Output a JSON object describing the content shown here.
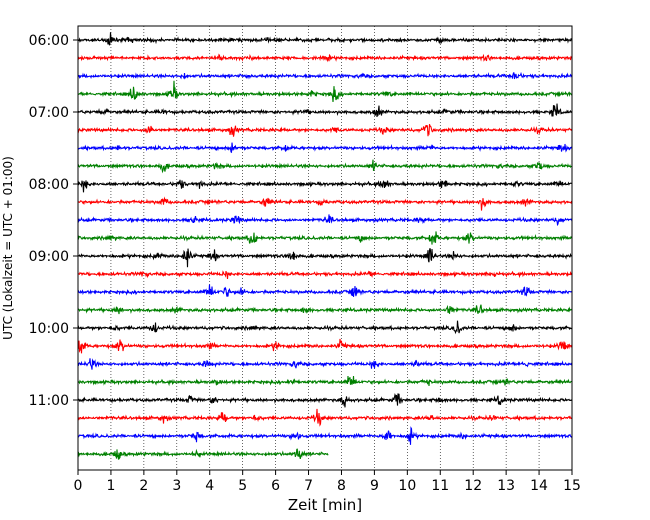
{
  "chart_data": {
    "type": "line",
    "xlabel": "Zeit  [min]",
    "ylabel": "UTC (Lokalzeit = UTC + 01:00)",
    "xlim": [
      0,
      15
    ],
    "x_ticks": [
      "0",
      "1",
      "2",
      "3",
      "4",
      "5",
      "6",
      "7",
      "8",
      "9",
      "10",
      "11",
      "12",
      "13",
      "14",
      "15"
    ],
    "y_ticks": [
      "06:00",
      "07:00",
      "08:00",
      "09:00",
      "10:00",
      "11:00"
    ],
    "grid_x": true,
    "trace_minutes": 15,
    "start_time": "06:00",
    "colors": [
      "#000000",
      "#ff0000",
      "#0000ff",
      "#008000"
    ],
    "traces": [
      {
        "time": "06:00",
        "color": "#000000",
        "end_min": 15,
        "events": [
          [
            1.0,
            9
          ],
          [
            1.6,
            3
          ],
          [
            2.3,
            2
          ],
          [
            5.7,
            2
          ],
          [
            11.0,
            3
          ]
        ]
      },
      {
        "time": "06:15",
        "color": "#ff0000",
        "end_min": 15,
        "events": [
          [
            4.3,
            3
          ],
          [
            5.4,
            2
          ],
          [
            7.6,
            2
          ],
          [
            12.4,
            3
          ]
        ]
      },
      {
        "time": "06:30",
        "color": "#0000ff",
        "end_min": 15,
        "events": [
          [
            3.2,
            3
          ],
          [
            5.1,
            2
          ],
          [
            8.6,
            2
          ],
          [
            13.3,
            8
          ]
        ]
      },
      {
        "time": "06:45",
        "color": "#008000",
        "end_min": 15,
        "events": [
          [
            1.7,
            11
          ],
          [
            2.9,
            12
          ],
          [
            7.1,
            4
          ],
          [
            7.8,
            10
          ],
          [
            9.4,
            3
          ]
        ]
      },
      {
        "time": "07:00",
        "color": "#000000",
        "end_min": 15,
        "events": [
          [
            0.8,
            3
          ],
          [
            2.6,
            3
          ],
          [
            6.9,
            3
          ],
          [
            9.1,
            8
          ],
          [
            11.2,
            3
          ],
          [
            14.5,
            10
          ]
        ]
      },
      {
        "time": "07:15",
        "color": "#ff0000",
        "end_min": 15,
        "events": [
          [
            2.2,
            8
          ],
          [
            4.7,
            7
          ],
          [
            7.8,
            3
          ],
          [
            9.3,
            5
          ],
          [
            10.6,
            11
          ],
          [
            14.0,
            3
          ]
        ]
      },
      {
        "time": "07:30",
        "color": "#0000ff",
        "end_min": 15,
        "events": [
          [
            1.2,
            3
          ],
          [
            4.7,
            7
          ],
          [
            6.3,
            3
          ],
          [
            10.7,
            3
          ],
          [
            14.7,
            6
          ]
        ]
      },
      {
        "time": "07:45",
        "color": "#008000",
        "end_min": 15,
        "events": [
          [
            2.6,
            7
          ],
          [
            4.2,
            3
          ],
          [
            9.0,
            6
          ],
          [
            12.8,
            2
          ],
          [
            14.0,
            7
          ]
        ]
      },
      {
        "time": "08:00",
        "color": "#000000",
        "end_min": 15,
        "events": [
          [
            0.2,
            8
          ],
          [
            3.1,
            7
          ],
          [
            3.7,
            4
          ],
          [
            9.3,
            10
          ],
          [
            11.1,
            8
          ],
          [
            13.3,
            3
          ],
          [
            14.6,
            4
          ]
        ]
      },
      {
        "time": "08:15",
        "color": "#ff0000",
        "end_min": 15,
        "events": [
          [
            2.6,
            6
          ],
          [
            5.7,
            7
          ],
          [
            7.4,
            4
          ],
          [
            12.3,
            9
          ],
          [
            13.6,
            4
          ]
        ]
      },
      {
        "time": "08:30",
        "color": "#0000ff",
        "end_min": 15,
        "events": [
          [
            3.5,
            6
          ],
          [
            4.8,
            6
          ],
          [
            7.6,
            5
          ],
          [
            10.4,
            4
          ],
          [
            14.6,
            5
          ]
        ]
      },
      {
        "time": "08:45",
        "color": "#008000",
        "end_min": 15,
        "events": [
          [
            1.0,
            4
          ],
          [
            5.3,
            12
          ],
          [
            8.6,
            4
          ],
          [
            10.8,
            11
          ],
          [
            11.9,
            9
          ]
        ]
      },
      {
        "time": "09:00",
        "color": "#000000",
        "end_min": 15,
        "events": [
          [
            2.4,
            5
          ],
          [
            3.3,
            14
          ],
          [
            4.1,
            8
          ],
          [
            6.5,
            12
          ],
          [
            10.7,
            12
          ],
          [
            11.4,
            5
          ]
        ]
      },
      {
        "time": "09:15",
        "color": "#ff0000",
        "end_min": 15,
        "events": [
          [
            2.0,
            3
          ],
          [
            4.5,
            4
          ],
          [
            8.9,
            3
          ],
          [
            12.6,
            3
          ]
        ]
      },
      {
        "time": "09:30",
        "color": "#0000ff",
        "end_min": 15,
        "events": [
          [
            4.0,
            11
          ],
          [
            4.5,
            7
          ],
          [
            5.0,
            5
          ],
          [
            8.4,
            9
          ],
          [
            13.6,
            7
          ]
        ]
      },
      {
        "time": "09:45",
        "color": "#008000",
        "end_min": 15,
        "events": [
          [
            1.2,
            5
          ],
          [
            3.0,
            3
          ],
          [
            6.9,
            4
          ],
          [
            11.3,
            8
          ],
          [
            12.2,
            7
          ]
        ]
      },
      {
        "time": "10:00",
        "color": "#000000",
        "end_min": 15,
        "events": [
          [
            1.1,
            4
          ],
          [
            2.3,
            8
          ],
          [
            5.3,
            3
          ],
          [
            11.5,
            10
          ],
          [
            13.2,
            5
          ]
        ]
      },
      {
        "time": "10:15",
        "color": "#ff0000",
        "end_min": 15,
        "events": [
          [
            0.1,
            10
          ],
          [
            1.3,
            11
          ],
          [
            4.0,
            4
          ],
          [
            6.0,
            6
          ],
          [
            8.0,
            7
          ],
          [
            14.7,
            8
          ]
        ]
      },
      {
        "time": "10:30",
        "color": "#0000ff",
        "end_min": 15,
        "events": [
          [
            0.4,
            8
          ],
          [
            3.9,
            5
          ],
          [
            6.6,
            5
          ],
          [
            9.0,
            6
          ],
          [
            10.3,
            4
          ],
          [
            13.6,
            4
          ]
        ]
      },
      {
        "time": "10:45",
        "color": "#008000",
        "end_min": 15,
        "events": [
          [
            4.2,
            3
          ],
          [
            6.5,
            3
          ],
          [
            8.3,
            12
          ],
          [
            10.6,
            3
          ],
          [
            13.0,
            3
          ]
        ]
      },
      {
        "time": "11:00",
        "color": "#000000",
        "end_min": 15,
        "events": [
          [
            3.4,
            5
          ],
          [
            4.1,
            5
          ],
          [
            8.1,
            8
          ],
          [
            9.7,
            9
          ],
          [
            11.0,
            3
          ],
          [
            12.8,
            5
          ]
        ]
      },
      {
        "time": "11:15",
        "color": "#ff0000",
        "end_min": 15,
        "events": [
          [
            2.6,
            5
          ],
          [
            4.4,
            9
          ],
          [
            5.4,
            5
          ],
          [
            7.3,
            11
          ],
          [
            10.7,
            4
          ],
          [
            12.6,
            3
          ]
        ]
      },
      {
        "time": "11:30",
        "color": "#0000ff",
        "end_min": 15,
        "events": [
          [
            3.6,
            6
          ],
          [
            6.6,
            7
          ],
          [
            9.4,
            12
          ],
          [
            10.1,
            9
          ],
          [
            11.7,
            3
          ]
        ]
      },
      {
        "time": "11:45",
        "color": "#008000",
        "end_min": 7.6,
        "events": [
          [
            1.2,
            9
          ],
          [
            3.6,
            4
          ],
          [
            6.7,
            11
          ]
        ]
      }
    ]
  }
}
